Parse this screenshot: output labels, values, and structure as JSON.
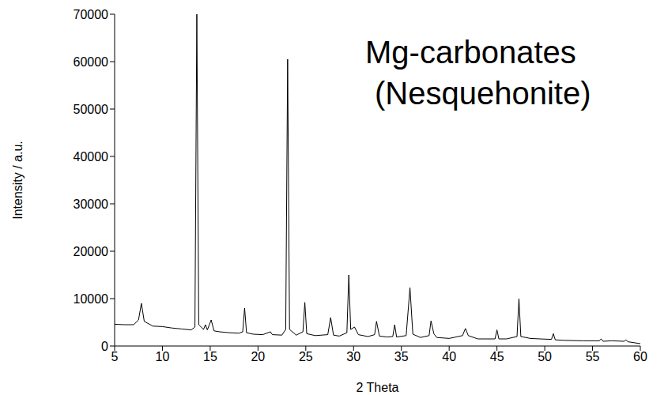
{
  "chart_data": {
    "type": "line",
    "annotation": "Mg-carbonates (Nesquehonite)",
    "x_label": "2 Theta",
    "y_label": "Intensity / a.u.",
    "color": "#000000",
    "xlim": [
      5,
      60
    ],
    "xticks": [
      5,
      10,
      15,
      20,
      25,
      30,
      35,
      40,
      45,
      50,
      55,
      60
    ],
    "ylim": [
      0,
      70000
    ],
    "yticks": [
      0,
      10000,
      20000,
      30000,
      40000,
      50000,
      60000,
      70000
    ],
    "x": [
      5,
      6,
      7,
      7.5,
      7.8,
      8.1,
      9,
      10,
      11,
      12,
      13,
      13.4,
      13.6,
      13.8,
      14.3,
      14.5,
      14.7,
      15.1,
      15.4,
      16,
      17,
      18,
      18.4,
      18.6,
      18.8,
      19.5,
      20.5,
      21.3,
      21.5,
      22.5,
      22.9,
      23.1,
      23.3,
      24,
      24.7,
      24.9,
      25.1,
      26,
      27.3,
      27.6,
      27.9,
      28.5,
      29.3,
      29.5,
      29.7,
      30.1,
      30.5,
      31.5,
      32.2,
      32.4,
      32.7,
      33.5,
      34.1,
      34.3,
      34.5,
      35.5,
      35.9,
      36.2,
      37,
      37.9,
      38.1,
      38.4,
      38.7,
      40,
      41.4,
      41.7,
      42,
      43,
      44.8,
      45,
      45.2,
      46,
      47.1,
      47.3,
      47.5,
      48.5,
      49.5,
      50.7,
      50.9,
      51.1,
      52,
      54,
      55.7,
      55.9,
      56.1,
      57,
      58.3,
      58.5,
      58.7,
      60
    ],
    "values": [
      4600,
      4500,
      4500,
      5500,
      9000,
      5200,
      4200,
      4100,
      3800,
      3600,
      3400,
      4000,
      70000,
      4500,
      3500,
      4500,
      3400,
      5500,
      3200,
      3000,
      2800,
      2700,
      3000,
      8000,
      2800,
      2500,
      2400,
      3000,
      2400,
      2300,
      3500,
      60500,
      3500,
      2300,
      3000,
      9200,
      2600,
      2200,
      2400,
      6000,
      2300,
      2100,
      2800,
      15000,
      3500,
      4000,
      2400,
      2000,
      2400,
      5200,
      2100,
      1900,
      2000,
      4500,
      1900,
      2200,
      12300,
      2500,
      1800,
      2200,
      5300,
      2600,
      1800,
      1600,
      2200,
      3700,
      2200,
      1500,
      1500,
      3400,
      1500,
      1500,
      2000,
      10000,
      2000,
      1600,
      1500,
      1400,
      2600,
      1300,
      1200,
      1100,
      1100,
      1500,
      1000,
      1100,
      1000,
      1300,
      900,
      500
    ]
  }
}
